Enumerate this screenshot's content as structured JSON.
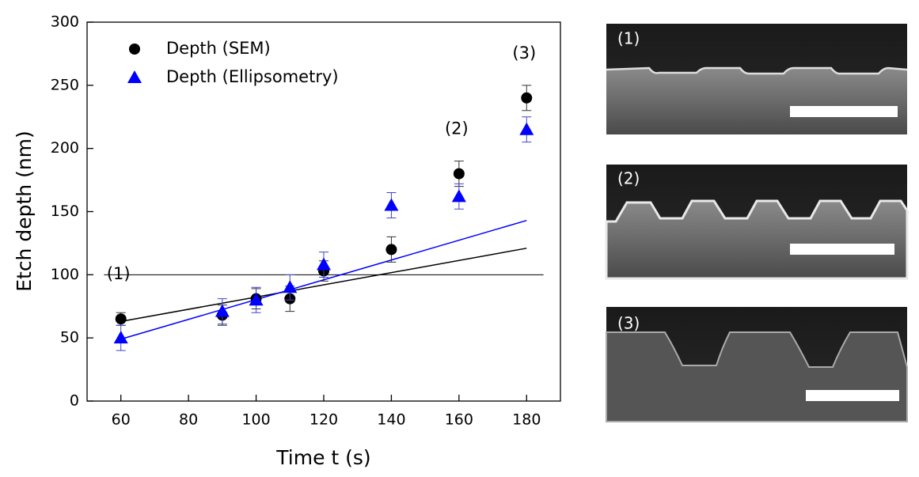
{
  "chart_data": {
    "type": "scatter",
    "x_label": "Time t (s)",
    "y_label": "Etch depth (nm)",
    "xlim": [
      50,
      190
    ],
    "ylim": [
      0,
      300
    ],
    "xticks": [
      60,
      80,
      100,
      120,
      140,
      160,
      180
    ],
    "yticks": [
      0,
      50,
      100,
      150,
      200,
      250,
      300
    ],
    "legend": "upper left",
    "series": [
      {
        "name": "Depth (SEM)",
        "color": "#000000",
        "marker": "circle",
        "x": [
          60,
          90,
          100,
          110,
          120,
          140,
          160,
          180
        ],
        "values": [
          65,
          68,
          81,
          81,
          103,
          120,
          180,
          240
        ],
        "errors": [
          5,
          8,
          8,
          10,
          8,
          10,
          10,
          10
        ]
      },
      {
        "name": "Depth (Ellipsometry)",
        "color": "#0000ff",
        "marker": "triangle",
        "x": [
          60,
          90,
          100,
          110,
          120,
          140,
          160,
          180
        ],
        "values": [
          50,
          71,
          80,
          90,
          108,
          155,
          162,
          215
        ],
        "errors": [
          10,
          10,
          10,
          10,
          10,
          10,
          10,
          10
        ]
      }
    ],
    "fits": [
      {
        "color": "#000000",
        "x": [
          60,
          180
        ],
        "values": [
          63,
          121
        ]
      },
      {
        "color": "#0000ff",
        "x": [
          60,
          180
        ],
        "values": [
          49,
          143
        ]
      }
    ],
    "hline": {
      "y": 100,
      "x": [
        55,
        185
      ]
    },
    "annotations": [
      "(1)",
      "(2)",
      "(3)"
    ]
  },
  "panels": [
    {
      "label": "(1)"
    },
    {
      "label": "(2)"
    },
    {
      "label": "(3)"
    }
  ]
}
